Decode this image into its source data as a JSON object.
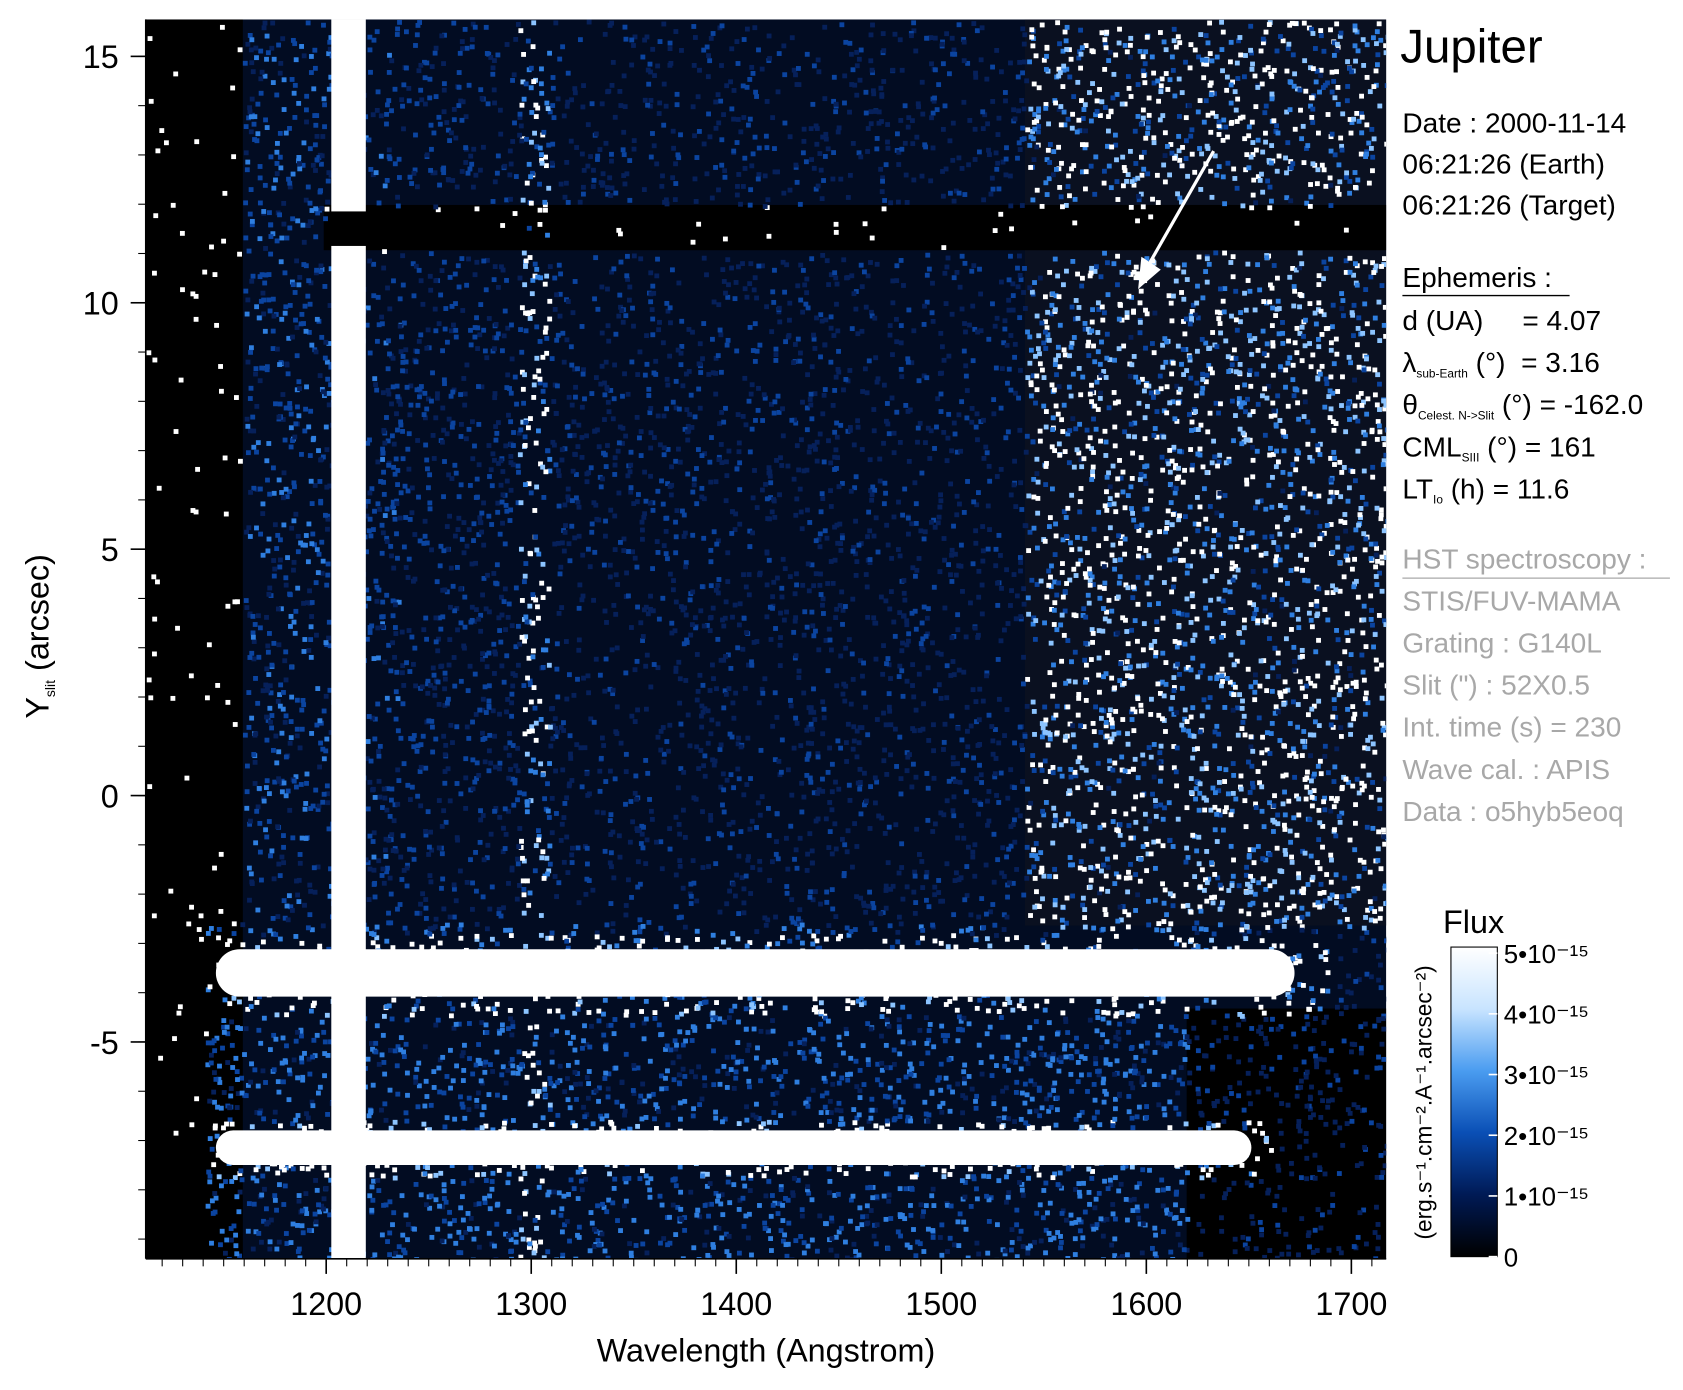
{
  "chart_data": {
    "type": "image",
    "x_label": "Wavelength (Angstrom)",
    "y_label": {
      "main": "Y",
      "sub": "slit",
      "rest": " (arcsec)"
    },
    "xlim": [
      1112,
      1717
    ],
    "ylim": [
      -9.4,
      15.75
    ],
    "xticks": [
      1200,
      1300,
      1400,
      1500,
      1600,
      1700
    ],
    "yticks": [
      -5,
      0,
      5,
      10,
      15
    ],
    "colorbar": {
      "title": "Flux",
      "units": "(erg.s⁻¹.cm⁻².A⁻¹.arcsec⁻²)",
      "lim": [
        0,
        5.1e-15
      ],
      "ticks": [
        0,
        {
          "value": 1e-15,
          "label": "1•10⁻¹⁵"
        },
        {
          "value": 2e-15,
          "label": "2•10⁻¹⁵"
        },
        {
          "value": 3e-15,
          "label": "3•10⁻¹⁵"
        },
        {
          "value": 4e-15,
          "label": "4•10⁻¹⁵"
        },
        {
          "value": 5e-15,
          "label": "5•10⁻¹⁵"
        }
      ],
      "colors": [
        "#000000",
        "#001a55",
        "#0a4fb5",
        "#4a9cf0",
        "#c8e4ff",
        "#ffffff"
      ]
    }
  },
  "info": {
    "title": "Jupiter",
    "date_lines": [
      "Date : 2000-11-14",
      "06:21:26 (Earth)",
      "06:21:26 (Target)"
    ],
    "ephemeris": {
      "heading": "Ephemeris :",
      "items": [
        {
          "label": "d (UA)     = 4.07"
        },
        {
          "label": "λ",
          "sub": "sub-Earth",
          "rest": " (°)  = 3.16"
        },
        {
          "label": "θ",
          "sub": "Celest. N->Slit",
          "rest": " (°) = -162.0"
        },
        {
          "label": "CML",
          "sub": "SIII",
          "rest": " (°) = 161"
        },
        {
          "label": "LT",
          "sub": "Io",
          "rest": " (h) = 11.6"
        }
      ]
    },
    "hst": {
      "heading": "HST spectroscopy :",
      "lines": [
        "STIS/FUV-MAMA",
        "Grating : G140L",
        "Slit (\") : 52X0.5",
        "Int. time (s) = 230",
        "Wave cal. : APIS",
        "Data : o5hyb5eoq"
      ]
    }
  }
}
